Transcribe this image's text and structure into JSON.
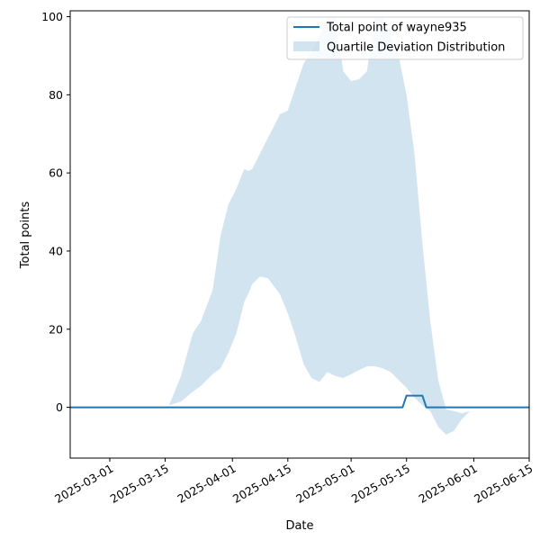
{
  "chart_data": {
    "type": "line",
    "xlabel": "Date",
    "ylabel": "Total points",
    "xlim": [
      "2025-02-19",
      "2025-06-15"
    ],
    "ylim": [
      -13,
      101.5
    ],
    "x_ticks": [
      "2025-03-01",
      "2025-03-15",
      "2025-04-01",
      "2025-04-15",
      "2025-05-01",
      "2025-05-15",
      "2025-06-01",
      "2025-06-15"
    ],
    "y_ticks": [
      0,
      20,
      40,
      60,
      80,
      100
    ],
    "grid": false,
    "legend_position": "top-right",
    "colors": {
      "line": "#1f77b4",
      "band": "#1f77b4",
      "band_opacity": 0.2
    },
    "series": [
      {
        "name": "Total point of wayne935",
        "kind": "line",
        "x": [
          "2025-02-19",
          "2025-05-14",
          "2025-05-15",
          "2025-05-19",
          "2025-05-20",
          "2025-06-15"
        ],
        "y": [
          0,
          0,
          3,
          3,
          0,
          0
        ]
      },
      {
        "name": "Quartile Deviation Distribution",
        "kind": "band",
        "x": [
          "2025-03-08",
          "2025-03-12",
          "2025-03-16",
          "2025-03-19",
          "2025-03-22",
          "2025-03-24",
          "2025-03-27",
          "2025-03-29",
          "2025-03-31",
          "2025-04-02",
          "2025-04-04",
          "2025-04-05",
          "2025-04-06",
          "2025-04-08",
          "2025-04-10",
          "2025-04-13",
          "2025-04-15",
          "2025-04-17",
          "2025-04-19",
          "2025-04-21",
          "2025-04-23",
          "2025-04-25",
          "2025-04-27",
          "2025-04-29",
          "2025-05-01",
          "2025-05-03",
          "2025-05-05",
          "2025-05-07",
          "2025-05-09",
          "2025-05-11",
          "2025-05-13",
          "2025-05-15",
          "2025-05-17",
          "2025-05-19",
          "2025-05-21",
          "2025-05-23",
          "2025-05-25",
          "2025-05-27",
          "2025-05-29",
          "2025-05-31"
        ],
        "upper": [
          0.8,
          0.8,
          0.5,
          8,
          19,
          22,
          30,
          44,
          52,
          56,
          61,
          60.5,
          61,
          65,
          69,
          75,
          76,
          82,
          88,
          91,
          95,
          100,
          100,
          86,
          83.5,
          84,
          86,
          100,
          100,
          95,
          90,
          80,
          65,
          42,
          22,
          7,
          -0.5,
          -1,
          -1.5,
          -1
        ],
        "lower": [
          0.8,
          0.8,
          0.5,
          1.5,
          4,
          5.5,
          8.5,
          10,
          14,
          19,
          27,
          29,
          31.5,
          33.5,
          33,
          29,
          24,
          18,
          11,
          7.5,
          6.5,
          9,
          8,
          7.5,
          8.5,
          9.5,
          10.5,
          10.5,
          10,
          9,
          7,
          5,
          2.5,
          0.5,
          -1,
          -5,
          -7,
          -6,
          -3,
          -1
        ]
      }
    ]
  }
}
